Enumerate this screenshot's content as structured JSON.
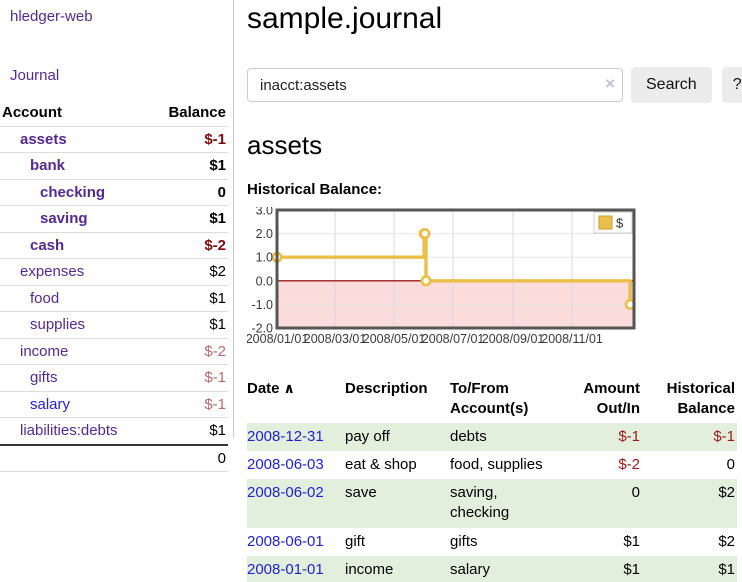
{
  "app": {
    "brand": "hledger-web",
    "nav_journal": "Journal"
  },
  "page": {
    "title": "sample.journal",
    "account_heading": "assets",
    "chart_heading": "Historical Balance:"
  },
  "search": {
    "query": "inacct:assets",
    "clear_icon": "×",
    "button_label": "Search",
    "help_label": "?"
  },
  "sidebar": {
    "headers": {
      "account": "Account",
      "balance": "Balance"
    },
    "accounts": [
      {
        "account": "assets",
        "balance": "$-1",
        "depth": 1,
        "bold": true,
        "negative": true,
        "link": "purple"
      },
      {
        "account": "bank",
        "balance": "$1",
        "depth": 2,
        "bold": true,
        "negative": false,
        "link": "purple"
      },
      {
        "account": "checking",
        "balance": "0",
        "depth": 3,
        "bold": true,
        "negative": false,
        "link": "purple"
      },
      {
        "account": "saving",
        "balance": "$1",
        "depth": 3,
        "bold": true,
        "negative": false,
        "link": "purple"
      },
      {
        "account": "cash",
        "balance": "$-2",
        "depth": 2,
        "bold": true,
        "negative": true,
        "link": "purple"
      },
      {
        "account": "expenses",
        "balance": "$2",
        "depth": 1,
        "bold": false,
        "negative": false,
        "link": "purple"
      },
      {
        "account": "food",
        "balance": "$1",
        "depth": 2,
        "bold": false,
        "negative": false,
        "link": "purple"
      },
      {
        "account": "supplies",
        "balance": "$1",
        "depth": 2,
        "bold": false,
        "negative": false,
        "link": "purple"
      },
      {
        "account": "income",
        "balance": "$-2",
        "depth": 1,
        "bold": false,
        "negative": true,
        "link": "purple"
      },
      {
        "account": "gifts",
        "balance": "$-1",
        "depth": 2,
        "bold": false,
        "negative": true,
        "link": "purple"
      },
      {
        "account": "salary",
        "balance": "$-1",
        "depth": 2,
        "bold": false,
        "negative": true,
        "link": "blue"
      },
      {
        "account": "liabilities:debts",
        "balance": "$1",
        "depth": 1,
        "bold": false,
        "negative": false,
        "link": "purple"
      }
    ],
    "total": "0"
  },
  "chart_data": {
    "type": "line",
    "steps": true,
    "title": "Historical Balance",
    "series": [
      {
        "name": "$",
        "color": "#e9bf4a",
        "points": [
          [
            "2008-01-01",
            1
          ],
          [
            "2008-06-01",
            2
          ],
          [
            "2008-06-02",
            2
          ],
          [
            "2008-06-03",
            0
          ],
          [
            "2008-12-31",
            -1
          ]
        ]
      }
    ],
    "ylim": [
      -2,
      3
    ],
    "yticks": [
      "3.0",
      "2.0",
      "1.0",
      "0.0",
      "-1.0",
      "-2.0"
    ],
    "xticks": [
      "2008/01/01",
      "2008/03/01",
      "2008/05/01",
      "2008/07/01",
      "2008/09/01",
      "2008/11/01"
    ],
    "legend": {
      "label": "$",
      "position": "top-right"
    },
    "grid": true,
    "negative_region_color": "#fbdcdc",
    "zero_line_color": "#9b1c1c",
    "border_color": "#555555"
  },
  "register": {
    "sort_icon": "∧",
    "headers": [
      {
        "lines": [
          "Date"
        ],
        "align": "left",
        "sortable": true,
        "name": "date"
      },
      {
        "lines": [
          "Description"
        ],
        "align": "left",
        "sortable": false,
        "name": "description"
      },
      {
        "lines": [
          "To/From",
          "Account(s)"
        ],
        "align": "left",
        "sortable": false,
        "name": "accounts"
      },
      {
        "lines": [
          "Amount",
          "Out/In"
        ],
        "align": "right",
        "sortable": false,
        "name": "amount"
      },
      {
        "lines": [
          "Historical",
          "Balance"
        ],
        "align": "right",
        "sortable": false,
        "name": "balance"
      }
    ],
    "rows": [
      {
        "date": "2008-12-31",
        "description": "pay off",
        "accounts": "debts",
        "amount": "$-1",
        "amount_neg": true,
        "balance": "$-1",
        "balance_neg": true
      },
      {
        "date": "2008-06-03",
        "description": "eat & shop",
        "accounts": "food, supplies",
        "amount": "$-2",
        "amount_neg": true,
        "balance": "0",
        "balance_neg": false
      },
      {
        "date": "2008-06-02",
        "description": "save",
        "accounts": "saving,\nchecking",
        "amount": "0",
        "amount_neg": false,
        "balance": "$2",
        "balance_neg": false
      },
      {
        "date": "2008-06-01",
        "description": "gift",
        "accounts": "gifts",
        "amount": "$1",
        "amount_neg": false,
        "balance": "$2",
        "balance_neg": false
      },
      {
        "date": "2008-01-01",
        "description": "income",
        "accounts": "salary",
        "amount": "$1",
        "amount_neg": false,
        "balance": "$1",
        "balance_neg": false
      }
    ]
  },
  "colors": {
    "accent_purple": "#552a90",
    "link_blue": "#2222cc",
    "negative_bold": "#7b0c0c",
    "negative_soft": "#b56b6b",
    "negative_register": "#9d1919",
    "row_stripe_green": "#e3efdd",
    "series_gold": "#e9bf4a"
  }
}
